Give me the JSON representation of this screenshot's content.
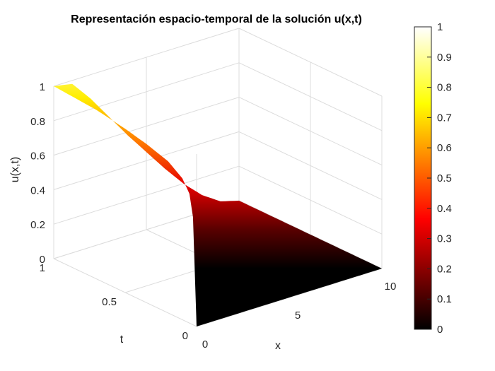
{
  "chart_data": {
    "type": "surface",
    "title": "Representación espacio-temporal de la solución u(x,t)",
    "xlabel": "x",
    "ylabel": "t",
    "zlabel": "u(x,t)",
    "xlim": [
      0,
      10
    ],
    "ylim": [
      0,
      1
    ],
    "zlim": [
      0,
      1
    ],
    "xticks": [
      "0",
      "5",
      "10"
    ],
    "yticks": [
      "0",
      "0.5",
      "1"
    ],
    "zticks": [
      "0",
      "0.2",
      "0.4",
      "0.6",
      "0.8",
      "1"
    ],
    "colormap": "hot",
    "grid": true,
    "colorbar": {
      "position": "right",
      "range": [
        0,
        1
      ],
      "ticks": [
        "0",
        "0.1",
        "0.2",
        "0.3",
        "0.4",
        "0.5",
        "0.6",
        "0.7",
        "0.8",
        "0.9",
        "1"
      ]
    },
    "surface_samples": {
      "description": "u values sampled along the visible edges of the surface",
      "t_at_x0": [
        0,
        0.02,
        0.05,
        0.1,
        0.2,
        0.35,
        0.5,
        0.7,
        0.85,
        1.0
      ],
      "u_at_x0": [
        0,
        0.6,
        0.75,
        0.82,
        0.88,
        0.92,
        0.95,
        0.98,
        0.99,
        1.0
      ],
      "x_at_t1": [
        0,
        1,
        2,
        3,
        4,
        5,
        6,
        7,
        8,
        9,
        10
      ],
      "u_at_t1": [
        1.0,
        0.98,
        0.86,
        0.72,
        0.58,
        0.45,
        0.32,
        0.2,
        0.1,
        0.03,
        0.0
      ]
    }
  }
}
